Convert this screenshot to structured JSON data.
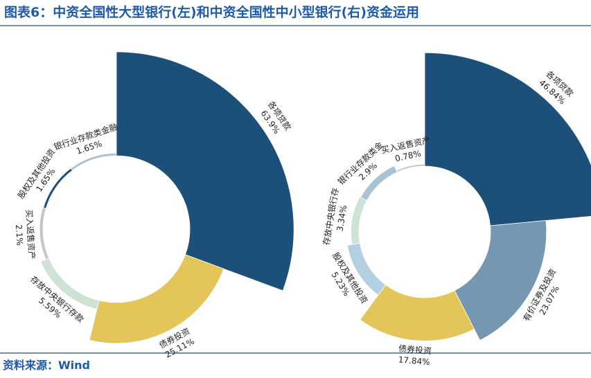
{
  "title": "图表6：中资全国性大型银行(左)和中资全国性中小型银行(右)资金运用",
  "source": "资料来源：Wind",
  "chart_data": [
    {
      "type": "pie",
      "categories": [
        "各项贷款",
        "债券投资",
        "存放中央银行存款",
        "买入返售资产",
        "股权及其他投资",
        "银行业存款类金融"
      ],
      "values": [
        63.9,
        25.11,
        5.59,
        2.1,
        1.65,
        1.65
      ],
      "value_labels": [
        "63.9%",
        "25.11%",
        "5.59%",
        "2.1%",
        "1.65%",
        "1.65%"
      ],
      "colors": [
        "#1c5078",
        "#e3c55a",
        "#cfe3d4",
        "#c6c6c6",
        "#1c5078",
        "#a9c3d3"
      ]
    },
    {
      "type": "pie",
      "categories": [
        "各项贷款",
        "有价证券及投资",
        "债券投资",
        "股权及其他投资",
        "存放中央银行存",
        "银行业存款类金",
        "买入返售资产"
      ],
      "values": [
        46.84,
        23.07,
        17.84,
        5.23,
        3.34,
        2.9,
        0.78
      ],
      "value_labels": [
        "46.84%",
        "23.07%",
        "17.84%",
        "5.23%",
        "3.34%",
        "2.9%",
        "0.78%"
      ],
      "colors": [
        "#1c5078",
        "#7597b2",
        "#e3c55a",
        "#b2d0e0",
        "#cfe3d4",
        "#a9c3d3",
        "#c6c6c6"
      ]
    }
  ]
}
